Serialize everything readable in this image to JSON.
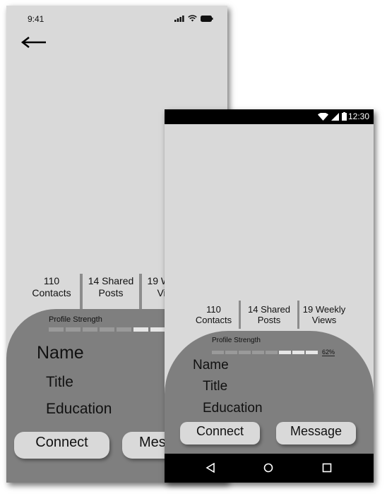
{
  "ios": {
    "status_time": "9:41",
    "stats": [
      {
        "line1": "110",
        "line2": "Contacts"
      },
      {
        "line1": "14 Shared",
        "line2": "Posts"
      },
      {
        "line1": "19 Weekly",
        "line2": "Views"
      }
    ],
    "profile_strength_label": "Profile Strength",
    "profile_strength_fraction": 0.62,
    "name": "Name",
    "title": "Title",
    "education": "Education",
    "connect_label": "Connect",
    "message_label": "Message"
  },
  "android": {
    "status_time": "12:30",
    "stats": [
      {
        "line1": "110",
        "line2": "Contacts"
      },
      {
        "line1": "14 Shared",
        "line2": "Posts"
      },
      {
        "line1": "19 Weekly",
        "line2": "Views"
      }
    ],
    "profile_strength_label": "Profile Strength",
    "profile_strength_percent": "62%",
    "name": "Name",
    "title": "Title",
    "education": "Education",
    "connect_label": "Connect",
    "message_label": "Message"
  },
  "colors": {
    "screen_bg": "#d9d9d9",
    "card_bg": "#7f7f7f",
    "bar_bg": "#000000"
  }
}
